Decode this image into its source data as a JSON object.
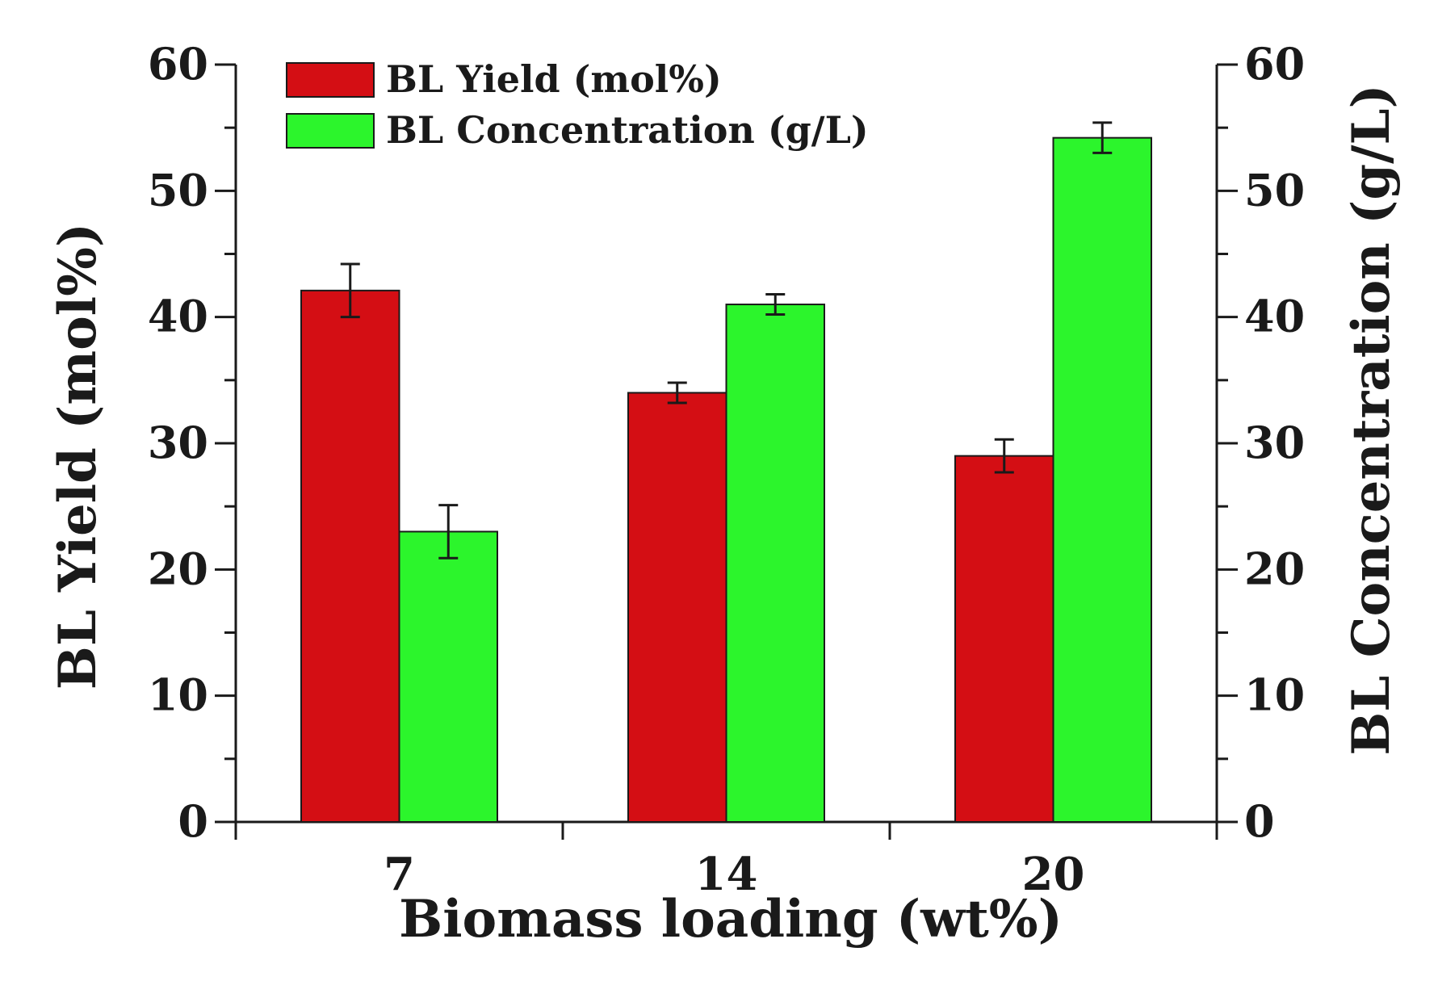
{
  "chart_data": {
    "type": "bar",
    "title": "",
    "xlabel": "Biomass loading (wt%)",
    "ylabel": "BL Yield (mol%)",
    "ylabel_right": "BL Concentration (g/L)",
    "categories": [
      "7",
      "14",
      "20"
    ],
    "ylim": [
      0,
      60
    ],
    "ylim_right": [
      0,
      60
    ],
    "yticks": [
      "0",
      "10",
      "20",
      "30",
      "40",
      "50",
      "60"
    ],
    "legend_position": "top-left",
    "series": [
      {
        "name": "BL Yield (mol%)",
        "axis": "left",
        "color": "#d40e14",
        "values": [
          42.1,
          34.0,
          29.0
        ],
        "errors": [
          2.1,
          0.8,
          1.3
        ]
      },
      {
        "name": "BL Concentration (g/L)",
        "axis": "right",
        "color": "#2cf52c",
        "values": [
          23.0,
          41.0,
          54.2
        ],
        "errors": [
          2.1,
          0.8,
          1.2
        ]
      }
    ]
  }
}
